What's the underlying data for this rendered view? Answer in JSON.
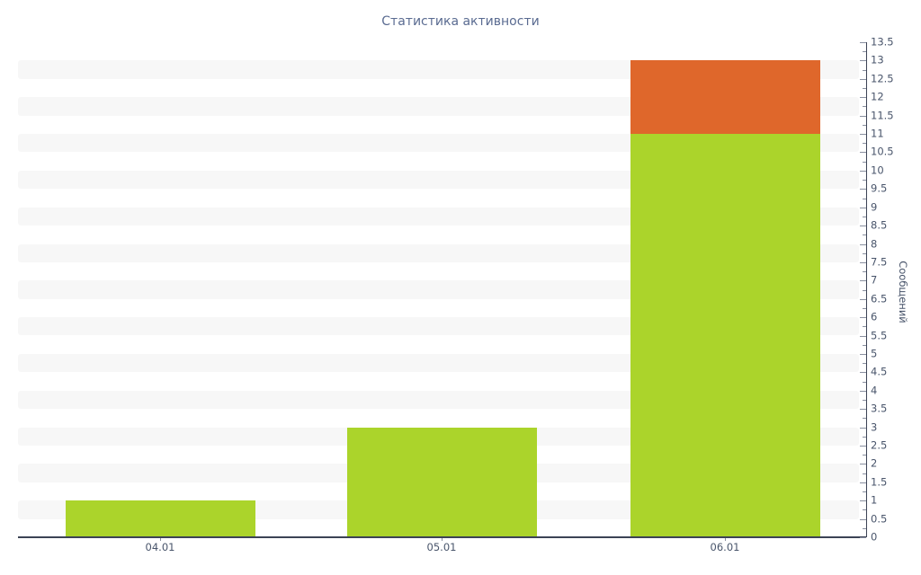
{
  "chart_data": {
    "type": "bar",
    "stacked": true,
    "title": "Статистика активности",
    "categories": [
      "04.01",
      "05.01",
      "06.01"
    ],
    "series": [
      {
        "name": "green-series",
        "color": "#abd42b",
        "values": [
          1,
          3,
          11
        ]
      },
      {
        "name": "orange-series",
        "color": "#df672b",
        "values": [
          0,
          0,
          2
        ]
      }
    ],
    "totals": [
      1,
      3,
      13
    ],
    "xlabel": "",
    "ylabel": "Сообщений",
    "ylim": [
      0,
      13.5
    ],
    "yaxis_position": "right",
    "ytick_step": 0.5,
    "yminor_tick_step": 0.25,
    "yticks": [
      "0",
      "0.5",
      "1",
      "1.5",
      "2",
      "2.5",
      "3",
      "3.5",
      "4",
      "4.5",
      "5",
      "5.5",
      "6",
      "6.5",
      "7",
      "7.5",
      "8",
      "8.5",
      "9",
      "9.5",
      "10",
      "10.5",
      "11",
      "11.5",
      "12",
      "12.5",
      "13",
      "13.5"
    ],
    "grid": "alternating horizontal bands",
    "legend": "none"
  },
  "style": {
    "background": "#ffffff",
    "stripe_color": "#f7f7f7",
    "title_color": "#5a6b91",
    "tick_label_color": "#49556b",
    "axis_line_color": "#3c4355",
    "tick_color": "#8a90a0",
    "bar_green": "#abd42b",
    "bar_orange": "#df672b"
  }
}
